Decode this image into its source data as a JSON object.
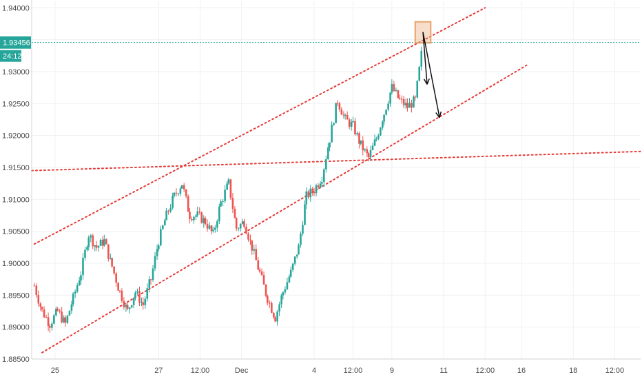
{
  "chart_data": {
    "type": "candlestick",
    "y_axis": {
      "position": "left",
      "range": [
        1.885,
        1.941
      ],
      "ticks": [
        "1.94000",
        "1.93500",
        "1.93000",
        "1.92500",
        "1.92000",
        "1.91500",
        "1.91000",
        "1.90500",
        "1.90000",
        "1.89500",
        "1.89000",
        "1.88500"
      ]
    },
    "x_axis": {
      "ticks": [
        {
          "label": "25",
          "x": 25.0
        },
        {
          "label": "27",
          "x": 27.0
        },
        {
          "label": "12:00",
          "x": 27.8
        },
        {
          "label": "Dec",
          "x": 28.6
        },
        {
          "label": "4",
          "x": 30.0
        },
        {
          "label": "12:00",
          "x": 30.75
        },
        {
          "label": "9",
          "x": 31.5
        },
        {
          "label": "11",
          "x": 32.5
        },
        {
          "label": "12:00",
          "x": 33.3
        },
        {
          "label": "16",
          "x": 34.0
        },
        {
          "label": "18",
          "x": 35.0
        },
        {
          "label": "12:00",
          "x": 35.8
        }
      ],
      "range": [
        24.55,
        36.3
      ]
    },
    "grid": true,
    "current_price": {
      "value": 1.93456,
      "label": "1.93456",
      "countdown": "24:12",
      "color": "#26a69a"
    },
    "candle_colors": {
      "up": "#26a69a",
      "down": "#ef5350"
    },
    "price_path": [
      [
        24.6,
        1.8965
      ],
      [
        24.75,
        1.8925
      ],
      [
        24.9,
        1.8905
      ],
      [
        25.05,
        1.8925
      ],
      [
        25.2,
        1.8905
      ],
      [
        25.35,
        1.8945
      ],
      [
        25.5,
        1.8985
      ],
      [
        25.65,
        1.9045
      ],
      [
        25.8,
        1.9025
      ],
      [
        25.95,
        1.9035
      ],
      [
        26.1,
        1.8995
      ],
      [
        26.25,
        1.8955
      ],
      [
        26.4,
        1.8925
      ],
      [
        26.55,
        1.8955
      ],
      [
        26.7,
        1.8935
      ],
      [
        26.85,
        1.8975
      ],
      [
        27.0,
        1.9035
      ],
      [
        27.15,
        1.9075
      ],
      [
        27.3,
        1.9105
      ],
      [
        27.45,
        1.9125
      ],
      [
        27.6,
        1.9075
      ],
      [
        27.75,
        1.9075
      ],
      [
        27.9,
        1.9065
      ],
      [
        28.05,
        1.9045
      ],
      [
        28.2,
        1.9095
      ],
      [
        28.35,
        1.9125
      ],
      [
        28.5,
        1.9055
      ],
      [
        28.65,
        1.9065
      ],
      [
        28.8,
        1.9025
      ],
      [
        28.95,
        1.8985
      ],
      [
        29.1,
        1.8945
      ],
      [
        29.25,
        1.8915
      ],
      [
        29.4,
        1.8955
      ],
      [
        29.55,
        1.8985
      ],
      [
        29.7,
        1.9025
      ],
      [
        29.85,
        1.9105
      ],
      [
        30.0,
        1.9115
      ],
      [
        30.15,
        1.9135
      ],
      [
        30.3,
        1.9195
      ],
      [
        30.45,
        1.9255
      ],
      [
        30.6,
        1.9225
      ],
      [
        30.75,
        1.9215
      ],
      [
        30.9,
        1.9185
      ],
      [
        31.05,
        1.9165
      ],
      [
        31.2,
        1.9195
      ],
      [
        31.35,
        1.9235
      ],
      [
        31.5,
        1.9275
      ],
      [
        31.65,
        1.9255
      ],
      [
        31.8,
        1.9245
      ],
      [
        31.95,
        1.9255
      ],
      [
        32.1,
        1.9345
      ]
    ],
    "trendlines": [
      {
        "name": "upper-channel",
        "points": [
          [
            24.6,
            1.903
          ],
          [
            33.3,
            1.94
          ]
        ],
        "color": "#e53935"
      },
      {
        "name": "lower-channel",
        "points": [
          [
            24.75,
            1.886
          ],
          [
            34.1,
            1.931
          ]
        ],
        "color": "#e53935"
      },
      {
        "name": "horizontal-resistance",
        "points": [
          [
            24.55,
            1.9145
          ],
          [
            36.3,
            1.9175
          ]
        ],
        "color": "#e53935"
      }
    ],
    "annotations": {
      "box": {
        "x0": 31.95,
        "x1": 32.25,
        "y0": 1.9345,
        "y1": 1.9378,
        "color": "#e8a06a"
      },
      "arrows": [
        {
          "from": [
            32.1,
            1.9362
          ],
          "to": [
            32.18,
            1.928
          ]
        },
        {
          "from": [
            32.1,
            1.9362
          ],
          "to": [
            32.42,
            1.9228
          ]
        }
      ]
    }
  }
}
